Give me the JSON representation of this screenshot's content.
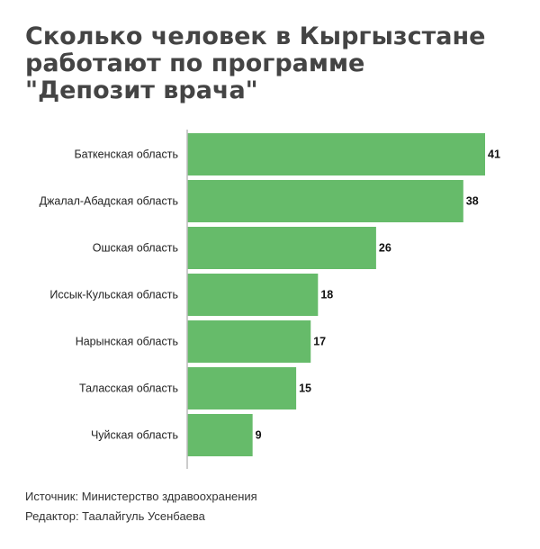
{
  "title": "Сколько человек в Кыргызстане работают по программе \"Депозит врача\"",
  "source": "Источник: Министерство здравоохранения",
  "editor": "Редактор: Таалайгуль Усенбаева",
  "colors": {
    "bar": "#66bb6a",
    "axis": "#bbbbbb"
  },
  "chart_data": {
    "type": "bar",
    "orientation": "horizontal",
    "categories": [
      "Баткенская область",
      "Джалал-Абадская область",
      "Ошская область",
      "Иссык-Кульская область",
      "Нарынская область",
      "Таласская область",
      "Чуйская область"
    ],
    "values": [
      41,
      38,
      26,
      18,
      17,
      15,
      9
    ],
    "data_labels": [
      "41",
      "38",
      "26",
      "18",
      "17",
      "15",
      "9"
    ],
    "xlim": [
      0,
      41
    ],
    "grid": false,
    "legend": "none"
  }
}
